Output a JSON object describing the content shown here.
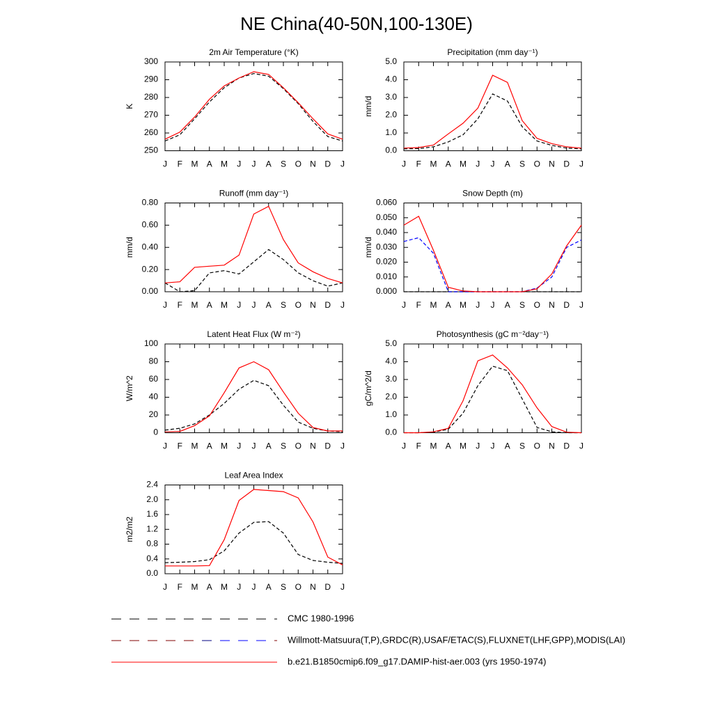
{
  "title": "NE China(40-50N,100-130E)",
  "legend": [
    {
      "name": "CMC 1980-1996",
      "colors": [
        "#000000"
      ],
      "dash": "14 12"
    },
    {
      "name": "Willmott-Matsuura(T,P),GRDC(R),USAF/ETAC(S),FLUXNET(LHF,GPP),MODIS(LAI)",
      "colors": [
        "#800000",
        "#800000",
        "#800000",
        "#800000",
        "#800000",
        "#000080",
        "#0000ff",
        "#0000ff",
        "#0000ff"
      ],
      "dash": "14 12"
    },
    {
      "name": "b.e21.B1850cmip6.f09_g17.DAMIP-hist-aer.003 (yrs 1950-1974)",
      "colors": [
        "#ff0000"
      ]
    }
  ],
  "chart_data": [
    {
      "type": "line",
      "title": "2m Air Temperature (°K)",
      "y_label": "K",
      "categories": [
        "J",
        "F",
        "M",
        "A",
        "M",
        "J",
        "J",
        "A",
        "S",
        "O",
        "N",
        "D",
        "J"
      ],
      "ylim": [
        250,
        300
      ],
      "yticks": [
        250,
        260,
        270,
        280,
        290,
        300
      ],
      "series": [
        {
          "color": "#000000",
          "dash": "5 3",
          "values": [
            255.5,
            259,
            268,
            277.5,
            285.5,
            291,
            293.5,
            292,
            285,
            276.5,
            266.5,
            258,
            255.5
          ]
        },
        {
          "color": "#ff0000",
          "values": [
            256.5,
            260.5,
            269,
            279,
            286.5,
            291,
            294.5,
            293,
            285.5,
            277,
            268,
            259.5,
            256.5
          ]
        }
      ]
    },
    {
      "type": "line",
      "title": "Precipitation (mm day⁻¹)",
      "y_label": "mm/d",
      "categories": [
        "J",
        "F",
        "M",
        "A",
        "M",
        "J",
        "J",
        "A",
        "S",
        "O",
        "N",
        "D",
        "J"
      ],
      "ylim": [
        0,
        5
      ],
      "yticks": [
        {
          "value": 0,
          "label": "0.0"
        },
        {
          "value": 1,
          "label": "1.0"
        },
        {
          "value": 2,
          "label": "2.0"
        },
        {
          "value": 3,
          "label": "3.0"
        },
        {
          "value": 4,
          "label": "4.0"
        },
        {
          "value": 5,
          "label": "5.0"
        }
      ],
      "series": [
        {
          "color": "#000000",
          "dash": "5 3",
          "values": [
            0.1,
            0.12,
            0.22,
            0.5,
            0.9,
            1.8,
            3.2,
            2.8,
            1.35,
            0.55,
            0.3,
            0.15,
            0.1
          ]
        },
        {
          "color": "#ff0000",
          "values": [
            0.15,
            0.18,
            0.32,
            0.95,
            1.55,
            2.4,
            4.25,
            3.85,
            1.7,
            0.7,
            0.4,
            0.22,
            0.15
          ]
        }
      ]
    },
    {
      "type": "line",
      "title": "Runoff (mm day⁻¹)",
      "y_label": "mm/d",
      "categories": [
        "J",
        "F",
        "M",
        "A",
        "M",
        "J",
        "J",
        "A",
        "S",
        "O",
        "N",
        "D",
        "J"
      ],
      "ylim": [
        0,
        0.8
      ],
      "yticks": [
        {
          "value": 0,
          "label": "0.00"
        },
        {
          "value": 0.2,
          "label": "0.20"
        },
        {
          "value": 0.4,
          "label": "0.40"
        },
        {
          "value": 0.6,
          "label": "0.60"
        },
        {
          "value": 0.8,
          "label": "0.80"
        }
      ],
      "series": [
        {
          "color": "#000000",
          "dash": "5 3",
          "values": [
            0.08,
            0,
            0.01,
            0.17,
            0.19,
            0.16,
            0.27,
            0.38,
            0.29,
            0.17,
            0.1,
            0.05,
            0.08
          ]
        },
        {
          "color": "#ff0000",
          "values": [
            0.08,
            0.09,
            0.22,
            0.23,
            0.24,
            0.33,
            0.7,
            0.77,
            0.47,
            0.26,
            0.18,
            0.12,
            0.08
          ]
        }
      ]
    },
    {
      "type": "line",
      "title": "Snow Depth (m)",
      "y_label": "mm/d",
      "categories": [
        "J",
        "F",
        "M",
        "A",
        "M",
        "J",
        "J",
        "A",
        "S",
        "O",
        "N",
        "D",
        "J"
      ],
      "ylim": [
        0,
        0.06
      ],
      "yticks": [
        {
          "value": 0,
          "label": "0.000"
        },
        {
          "value": 0.01,
          "label": "0.010"
        },
        {
          "value": 0.02,
          "label": "0.020"
        },
        {
          "value": 0.03,
          "label": "0.030"
        },
        {
          "value": 0.04,
          "label": "0.040"
        },
        {
          "value": 0.05,
          "label": "0.050"
        },
        {
          "value": 0.06,
          "label": "0.060"
        }
      ],
      "series": [
        {
          "color": "#000000",
          "dash": "5 3",
          "values": [
            0,
            0,
            0,
            0,
            0,
            0,
            0,
            0,
            0,
            0,
            0,
            0,
            0
          ]
        },
        {
          "color": "#0000ff",
          "dash": "5 3",
          "values": [
            0.034,
            0.0365,
            0.026,
            0,
            0,
            0,
            0,
            0,
            0,
            0.0025,
            0.01,
            0.03,
            0.035
          ]
        },
        {
          "color": "#ff0000",
          "values": [
            0.045,
            0.051,
            0.028,
            0.003,
            0.0005,
            0,
            0,
            0,
            0,
            0.002,
            0.012,
            0.031,
            0.045
          ]
        }
      ]
    },
    {
      "type": "line",
      "title": "Latent Heat Flux (W m⁻²)",
      "y_label": "W/m^2",
      "categories": [
        "J",
        "F",
        "M",
        "A",
        "M",
        "J",
        "J",
        "A",
        "S",
        "O",
        "N",
        "D",
        "J"
      ],
      "ylim": [
        0,
        100
      ],
      "yticks": [
        0,
        20,
        40,
        60,
        80,
        100
      ],
      "series": [
        {
          "color": "#000000",
          "dash": "5 3",
          "values": [
            3,
            5,
            10,
            20,
            33,
            49,
            59,
            53,
            31,
            12,
            5,
            2,
            1
          ]
        },
        {
          "color": "#ff0000",
          "values": [
            1,
            1.5,
            8,
            19,
            45,
            73,
            80,
            71,
            46,
            22,
            6,
            2,
            2
          ]
        }
      ]
    },
    {
      "type": "line",
      "title": "Photosynthesis (gC m⁻²day⁻¹)",
      "y_label": "gC/m^2/d",
      "categories": [
        "J",
        "F",
        "M",
        "A",
        "M",
        "J",
        "J",
        "A",
        "S",
        "O",
        "N",
        "D",
        "J"
      ],
      "ylim": [
        0,
        5
      ],
      "yticks": [
        {
          "value": 0,
          "label": "0.0"
        },
        {
          "value": 1,
          "label": "1.0"
        },
        {
          "value": 2,
          "label": "2.0"
        },
        {
          "value": 3,
          "label": "3.0"
        },
        {
          "value": 4,
          "label": "4.0"
        },
        {
          "value": 5,
          "label": "5.0"
        }
      ],
      "series": [
        {
          "color": "#000000",
          "dash": "5 3",
          "values": [
            0,
            0,
            0.03,
            0.2,
            1.1,
            2.65,
            3.75,
            3.5,
            1.9,
            0.3,
            0.05,
            0,
            0
          ]
        },
        {
          "color": "#ff0000",
          "values": [
            0,
            0,
            0.05,
            0.25,
            1.8,
            4.05,
            4.38,
            3.65,
            2.7,
            1.4,
            0.35,
            0.03,
            0
          ]
        }
      ]
    },
    {
      "type": "line",
      "title": "Leaf Area Index",
      "y_label": "m2/m2",
      "categories": [
        "J",
        "F",
        "M",
        "A",
        "M",
        "J",
        "J",
        "A",
        "S",
        "O",
        "N",
        "D",
        "J"
      ],
      "ylim": [
        0,
        2.4
      ],
      "yticks": [
        {
          "value": 0,
          "label": "0.0"
        },
        {
          "value": 0.4,
          "label": "0.4"
        },
        {
          "value": 0.8,
          "label": "0.8"
        },
        {
          "value": 1.2,
          "label": "1.2"
        },
        {
          "value": 1.6,
          "label": "1.6"
        },
        {
          "value": 2,
          "label": "2.0"
        },
        {
          "value": 2.4,
          "label": "2.4"
        }
      ],
      "series": [
        {
          "color": "#000000",
          "dash": "5 3",
          "values": [
            0.3,
            0.31,
            0.33,
            0.38,
            0.62,
            1.1,
            1.39,
            1.41,
            1.1,
            0.52,
            0.36,
            0.31,
            0.28
          ]
        },
        {
          "color": "#ff0000",
          "values": [
            0.21,
            0.21,
            0.21,
            0.22,
            0.92,
            1.98,
            2.28,
            2.25,
            2.22,
            2.05,
            1.4,
            0.45,
            0.24
          ]
        }
      ]
    }
  ]
}
